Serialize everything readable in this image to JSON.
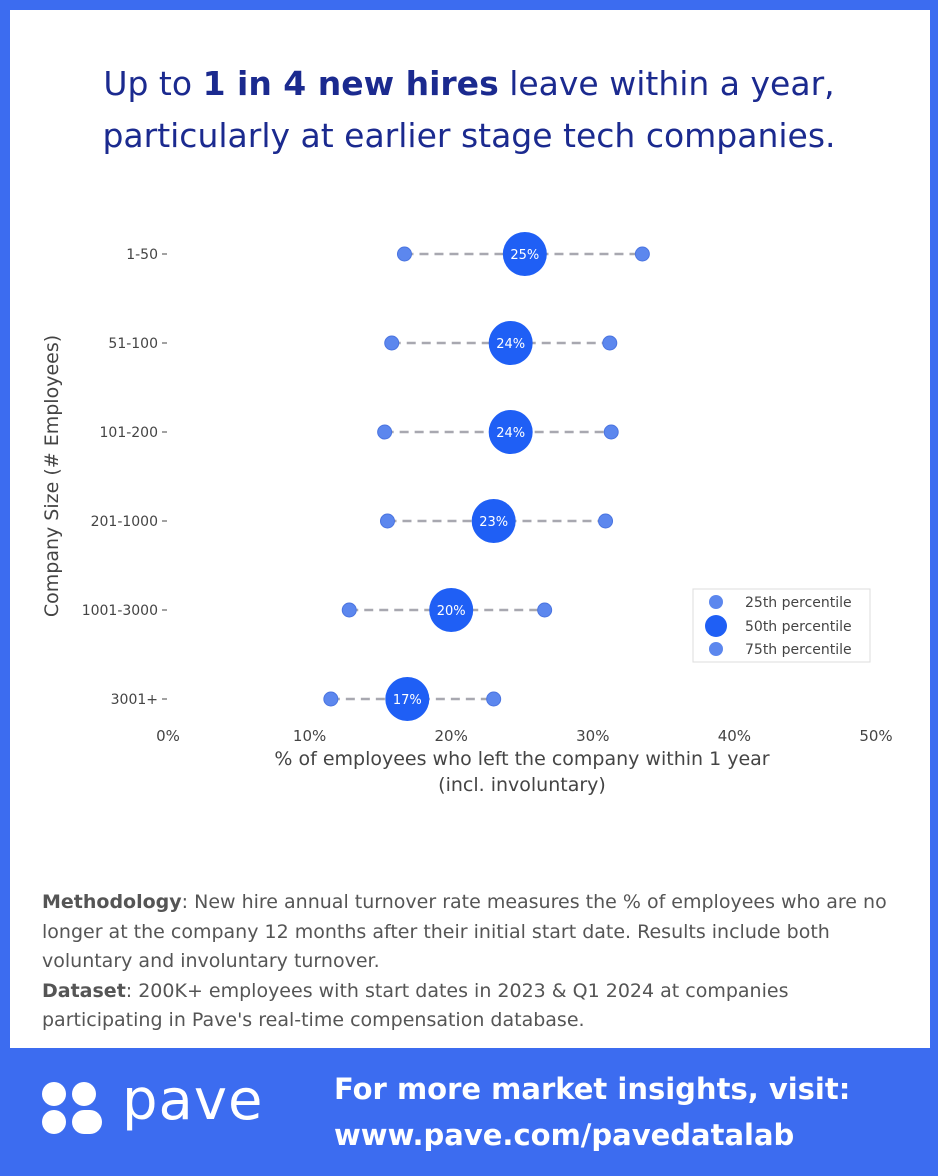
{
  "headline": {
    "prefix": "Up to ",
    "emphasis": "1 in 4 new hires",
    "line1_suffix": " leave within a year,",
    "line2": "particularly at earlier stage tech companies."
  },
  "methodology": {
    "method_label": "Methodology",
    "method_text": ": New hire annual turnover rate measures the % of employees who are no longer at the company 12 months after their initial start date. Results include both voluntary and involuntary turnover.",
    "dataset_label": "Dataset",
    "dataset_text": ": 200K+ employees with start dates in 2023 & Q1 2024 at companies participating in Pave's real-time compensation database."
  },
  "footer": {
    "logo_text": "pave",
    "cta_line1": "For more market insights, visit:",
    "cta_line2": "www.pave.com/pavedatalab"
  },
  "colors": {
    "background": "#3c6cf0",
    "title": "#1b2a8f",
    "marker_p50": "#1f5ff5",
    "marker_p25_p75": "#5c87ee",
    "dash_line": "#a8a8b0"
  },
  "chart_data": {
    "type": "scatter",
    "title": "",
    "xlabel_line1": "% of employees who left the company within 1 year",
    "xlabel_line2": "(incl. involuntary)",
    "ylabel": "Company Size (# Employees)",
    "xlim": [
      0,
      50
    ],
    "xticks": [
      0,
      10,
      20,
      30,
      40,
      50
    ],
    "xtick_labels": [
      "0%",
      "10%",
      "20%",
      "30%",
      "40%",
      "50%"
    ],
    "categories": [
      "1-50",
      "51-100",
      "101-200",
      "201-1000",
      "1001-3000",
      "3001+"
    ],
    "series": [
      {
        "name": "25th percentile",
        "values": [
          16.7,
          15.8,
          15.3,
          15.5,
          12.8,
          11.5
        ]
      },
      {
        "name": "50th percentile",
        "values": [
          25.2,
          24.2,
          24.2,
          23.0,
          20.0,
          16.9
        ],
        "labels": [
          "25%",
          "24%",
          "24%",
          "23%",
          "20%",
          "17%"
        ]
      },
      {
        "name": "75th percentile",
        "values": [
          33.5,
          31.2,
          31.3,
          30.9,
          26.6,
          23.0
        ]
      }
    ],
    "legend_position": "lower-right",
    "grid": false
  }
}
